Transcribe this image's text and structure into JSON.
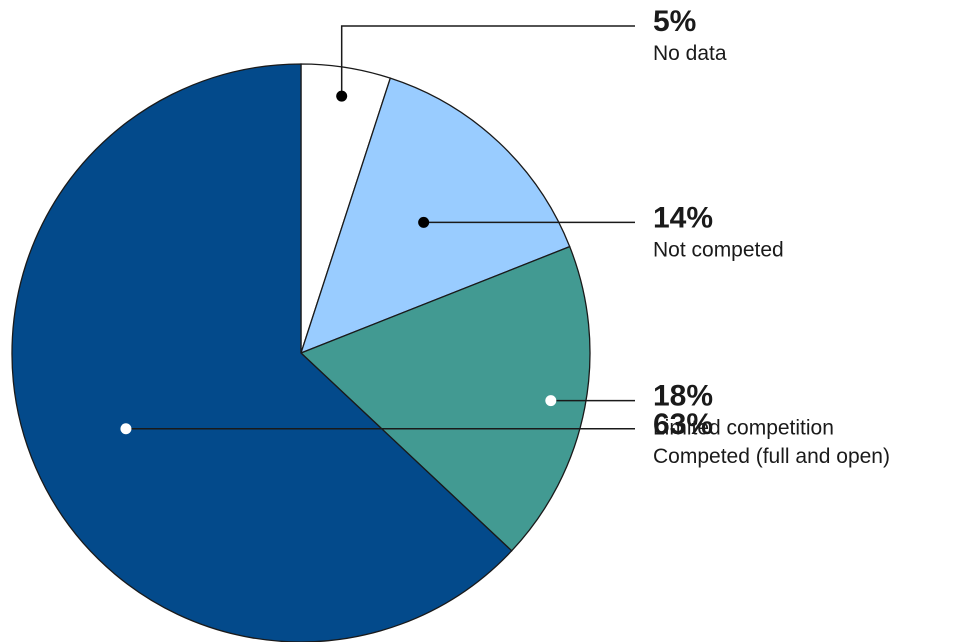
{
  "chart_data": {
    "type": "pie",
    "title": "",
    "slices": [
      {
        "label": "No data",
        "value": 5,
        "value_label": "5%",
        "color": "#ffffff",
        "dot_color": "#000000"
      },
      {
        "label": "Not competed",
        "value": 14,
        "value_label": "14%",
        "color": "#99ccff",
        "dot_color": "#000000"
      },
      {
        "label": "Limited competition",
        "value": 18,
        "value_label": "18%",
        "color": "#429a92",
        "dot_color": "#ffffff"
      },
      {
        "label": "Competed (full and open)",
        "value": 63,
        "value_label": "63%",
        "color": "#034a8b",
        "dot_color": "#ffffff"
      }
    ],
    "legend": "none",
    "label_placement": "right, leader lines"
  }
}
